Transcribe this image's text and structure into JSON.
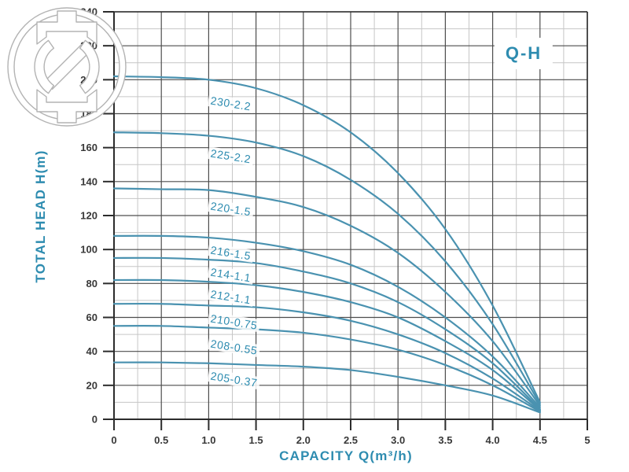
{
  "chart_data": {
    "type": "line",
    "title": "Q-H",
    "xlabel": "CAPACITY Q(m³/h)",
    "ylabel": "TOTAL HEAD H(m)",
    "xlim": [
      0,
      5
    ],
    "ylim": [
      0,
      240
    ],
    "x_major_step": 0.5,
    "x_minor_step": 0.25,
    "y_major_step": 20,
    "y_minor_step": 10,
    "grid": "major+minor",
    "legend": "labels-on-curves",
    "x_tick_labels": [
      "0",
      "0.5",
      "1.0",
      "1.5",
      "2.0",
      "2.5",
      "3.0",
      "3.5",
      "4.0",
      "4.5",
      "5"
    ],
    "y_tick_labels": [
      "0",
      "20",
      "40",
      "60",
      "80",
      "100",
      "120",
      "140",
      "160",
      "180",
      "200",
      "220",
      "240"
    ],
    "x": [
      0,
      0.5,
      1.0,
      1.5,
      2.0,
      2.5,
      3.0,
      3.5,
      4.0,
      4.5
    ],
    "series": [
      {
        "name": "230-2.2",
        "values": [
          202,
          201.5,
          200,
          195,
          185,
          169,
          145,
          112,
          67,
          10
        ],
        "label_at": {
          "x": 1.0,
          "y": 188
        }
      },
      {
        "name": "225-2.2",
        "values": [
          169,
          168.5,
          167,
          163,
          155,
          141,
          121,
          93,
          56,
          9
        ],
        "label_at": {
          "x": 1.0,
          "y": 157
        }
      },
      {
        "name": "220-1.5",
        "values": [
          136,
          135.5,
          135,
          131,
          125,
          114,
          98,
          75,
          46,
          8
        ],
        "label_at": {
          "x": 1.0,
          "y": 126
        }
      },
      {
        "name": "216-1.5",
        "values": [
          108,
          108,
          107,
          104,
          99,
          91,
          78,
          60,
          37,
          7
        ],
        "label_at": {
          "x": 1.0,
          "y": 100
        }
      },
      {
        "name": "214-1.1",
        "values": [
          95,
          95,
          94,
          92,
          87,
          80,
          69,
          53,
          33,
          6
        ],
        "label_at": {
          "x": 1.0,
          "y": 87
        }
      },
      {
        "name": "212-1.1",
        "values": [
          82,
          82,
          81,
          79,
          75,
          69,
          60,
          46,
          29,
          5.5
        ],
        "label_at": {
          "x": 1.0,
          "y": 74
        }
      },
      {
        "name": "210-0.75",
        "values": [
          68,
          68,
          67,
          66,
          63,
          58,
          50,
          39,
          24,
          5
        ],
        "label_at": {
          "x": 1.0,
          "y": 60
        }
      },
      {
        "name": "208-0.55",
        "values": [
          55,
          55,
          54,
          53,
          51,
          47,
          41,
          32,
          20,
          4.5
        ],
        "label_at": {
          "x": 1.0,
          "y": 45
        }
      },
      {
        "name": "205-0.37",
        "values": [
          33.5,
          33.5,
          33,
          32,
          31,
          29,
          25,
          20,
          14,
          4
        ],
        "label_at": {
          "x": 1.0,
          "y": 26
        }
      }
    ],
    "colors": {
      "curve": "#4a92b0",
      "curve_label": "#2e8cb0",
      "axis_title": "#2e8cb0",
      "tick_text": "#383838",
      "grid_major": "#4d4d4d",
      "grid_minor": "#c6c6c6",
      "axis_line": "#2c2c2c",
      "background": "#ffffff"
    }
  },
  "watermark": {
    "icon": "pump-manufacturer-logo"
  }
}
